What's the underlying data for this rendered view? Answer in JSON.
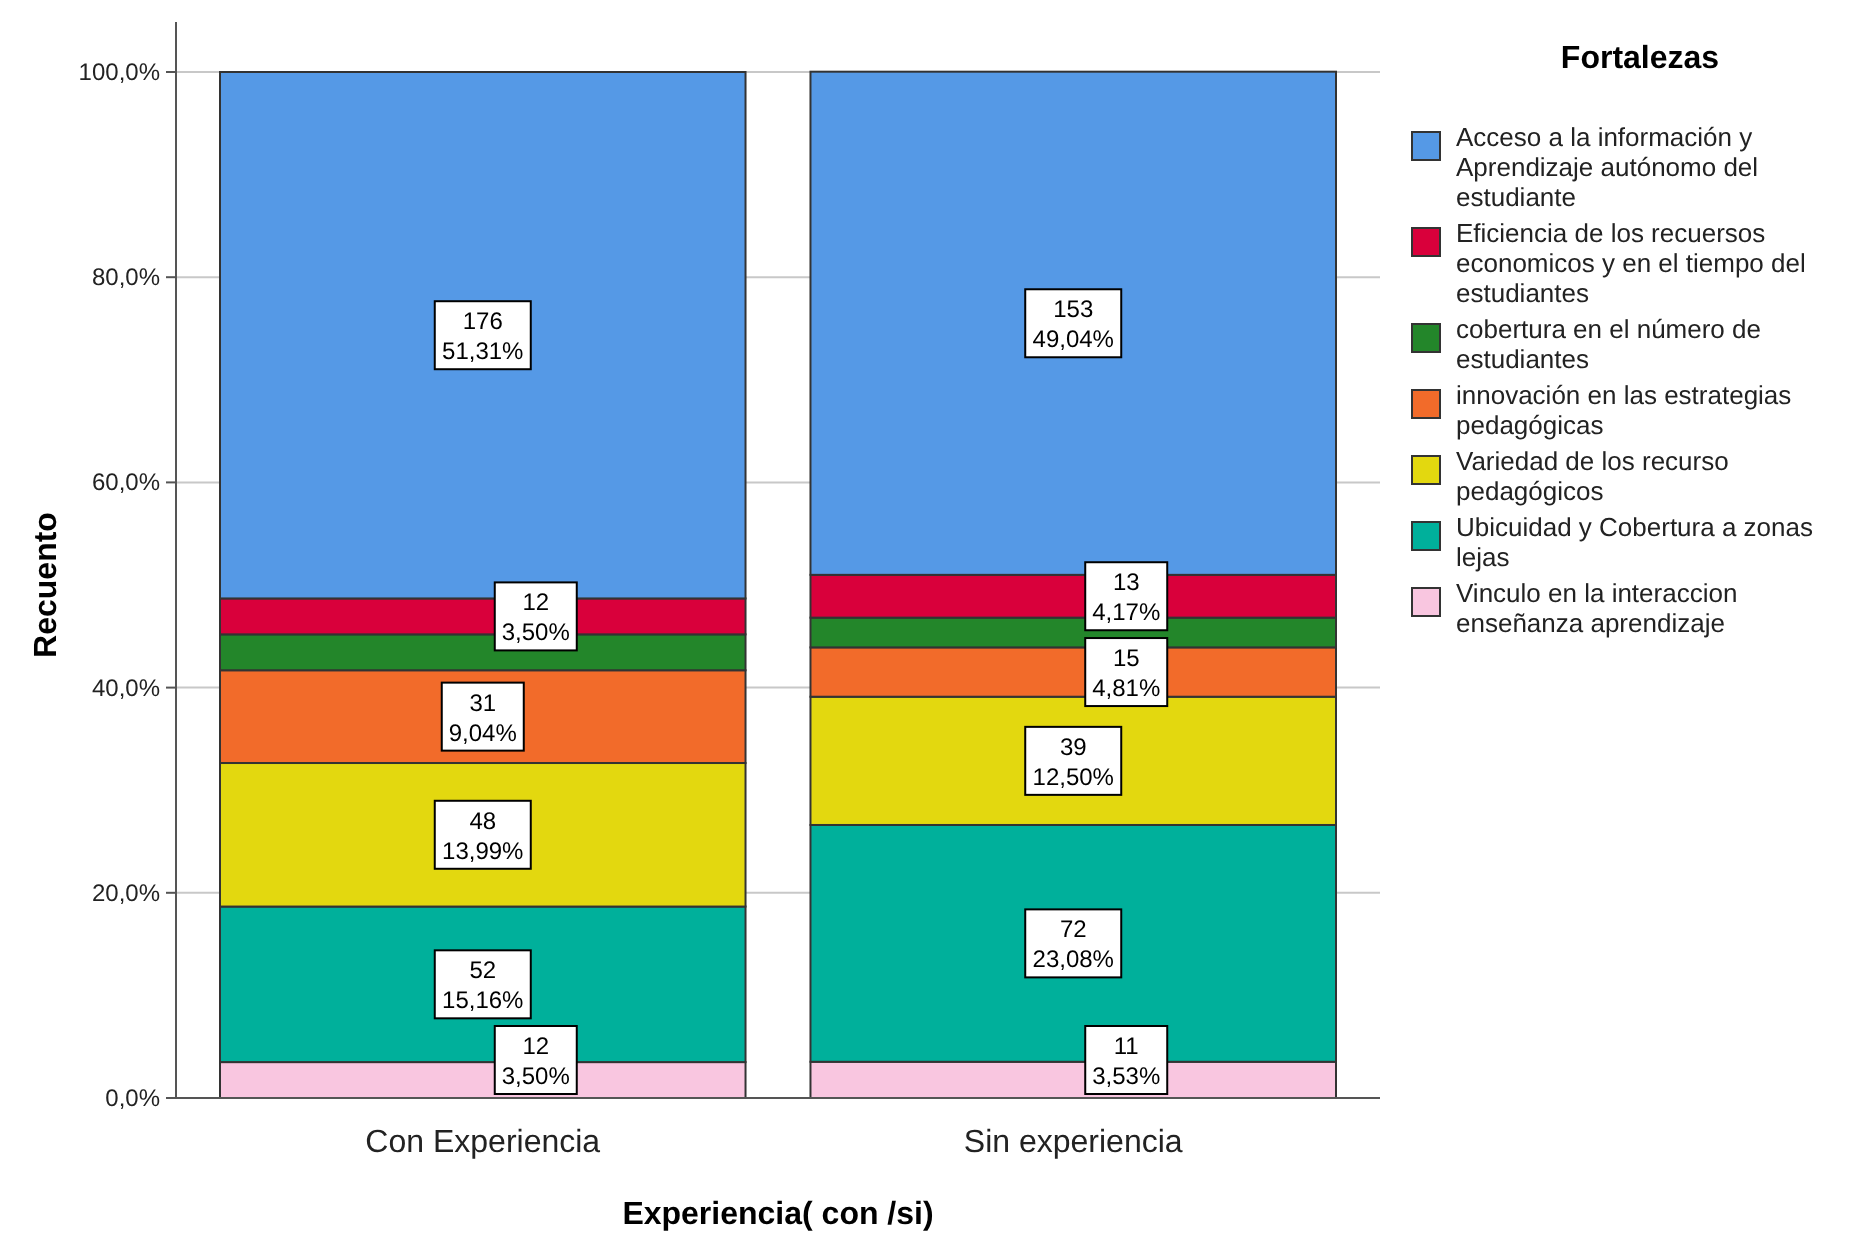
{
  "chart_data": {
    "type": "bar",
    "stacked": true,
    "xlabel": "Experiencia( con /si)",
    "ylabel": "Recuento",
    "legend_title": "Fortalezas",
    "legend": "right",
    "grid": "y",
    "categories": [
      "Con Experiencia",
      "Sin experiencia"
    ],
    "ylim": [
      0,
      100
    ],
    "yticks": [
      {
        "value": 0,
        "label": "0,0%"
      },
      {
        "value": 20,
        "label": "20,0%"
      },
      {
        "value": 40,
        "label": "40,0%"
      },
      {
        "value": 60,
        "label": "60,0%"
      },
      {
        "value": 80,
        "label": "80,0%"
      },
      {
        "value": 100,
        "label": "100,0%"
      }
    ],
    "series": [
      {
        "name": "Vinculo en la interaccion enseñanza aprendizaje",
        "color": "#f9c6e0",
        "values": [
          3.5,
          3.53
        ],
        "value_labels": [
          "12\n3,50%",
          "11\n3,53%"
        ]
      },
      {
        "name": "Ubicuidad y Cobertura a zonas lejas",
        "color": "#00b09b",
        "values": [
          15.16,
          23.08
        ],
        "value_labels": [
          "52\n15,16%",
          "72\n23,08%"
        ]
      },
      {
        "name": "Variedad de los recurso pedagógicos",
        "color": "#e3d80f",
        "values": [
          13.99,
          12.5
        ],
        "value_labels": [
          "48\n13,99%",
          "39\n12,50%"
        ]
      },
      {
        "name": "innovación en las estrategias pedagógicas",
        "color": "#f26b2a",
        "values": [
          9.04,
          4.81
        ],
        "value_labels": [
          "31\n9,04%",
          "15\n4,81%"
        ]
      },
      {
        "name": "cobertura en el número de estudiantes",
        "color": "#23862a",
        "values": [
          3.5,
          2.9
        ],
        "value_labels": [
          null,
          null
        ]
      },
      {
        "name": "Eficiencia de los recuersos economicos y en el tiempo del estudiantes",
        "color": "#d9003b",
        "values": [
          3.5,
          4.17
        ],
        "value_labels": [
          "12\n3,50%",
          "13\n4,17%"
        ]
      },
      {
        "name": "Acceso a la información y Aprendizaje autónomo del estudiante",
        "color": "#5599e6",
        "values": [
          51.31,
          49.04
        ],
        "value_labels": [
          "176\n51,31%",
          "153\n49,04%"
        ]
      }
    ]
  }
}
